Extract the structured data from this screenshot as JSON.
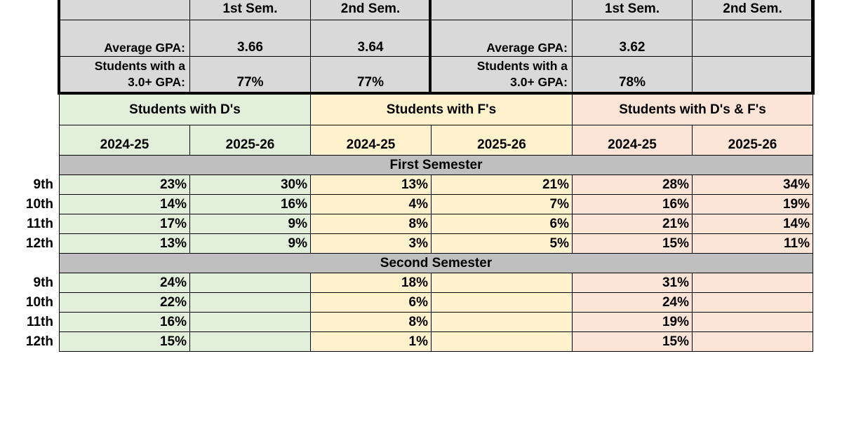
{
  "gpa_table": {
    "left": {
      "sem1_header": "1st Sem.",
      "sem2_header": "2nd Sem.",
      "avg_label": "Average GPA:",
      "avg_sem1": "3.66",
      "avg_sem2": "3.64",
      "pct_label_line1": "Students with a",
      "pct_label_line2": "3.0+ GPA:",
      "pct_sem1": "77%",
      "pct_sem2": "77%"
    },
    "right": {
      "sem1_header": "1st Sem.",
      "sem2_header": "2nd Sem.",
      "avg_label": "Average GPA:",
      "avg_sem1": "3.62",
      "avg_sem2": "",
      "pct_label_line1": "Students with a",
      "pct_label_line2": "3.0+ GPA:",
      "pct_sem1": "78%",
      "pct_sem2": ""
    }
  },
  "grades_table": {
    "groups": [
      "Students with D's",
      "Students with F's",
      "Students with D's & F's"
    ],
    "years": [
      "2024-25",
      "2025-26",
      "2024-25",
      "2025-26",
      "2024-25",
      "2025-26"
    ],
    "sections": [
      {
        "title": "First Semester",
        "rows": [
          {
            "grade": "9th",
            "values": [
              "23%",
              "30%",
              "13%",
              "21%",
              "28%",
              "34%"
            ]
          },
          {
            "grade": "10th",
            "values": [
              "14%",
              "16%",
              "4%",
              "7%",
              "16%",
              "19%"
            ]
          },
          {
            "grade": "11th",
            "values": [
              "17%",
              "9%",
              "8%",
              "6%",
              "21%",
              "14%"
            ]
          },
          {
            "grade": "12th",
            "values": [
              "13%",
              "9%",
              "3%",
              "5%",
              "15%",
              "11%"
            ]
          }
        ]
      },
      {
        "title": "Second Semester",
        "rows": [
          {
            "grade": "9th",
            "values": [
              "24%",
              "",
              "18%",
              "",
              "31%",
              ""
            ]
          },
          {
            "grade": "10th",
            "values": [
              "22%",
              "",
              "6%",
              "",
              "24%",
              ""
            ]
          },
          {
            "grade": "11th",
            "values": [
              "16%",
              "",
              "8%",
              "",
              "19%",
              ""
            ]
          },
          {
            "grade": "12th",
            "values": [
              "15%",
              "",
              "1%",
              "",
              "15%",
              ""
            ]
          }
        ]
      }
    ]
  },
  "colors": {
    "d_group": "#e2efda",
    "f_group": "#fff2cc",
    "df_group": "#fce4d6",
    "header_gray": "#d9d9d9",
    "section_bar": "#bfbfbf"
  }
}
